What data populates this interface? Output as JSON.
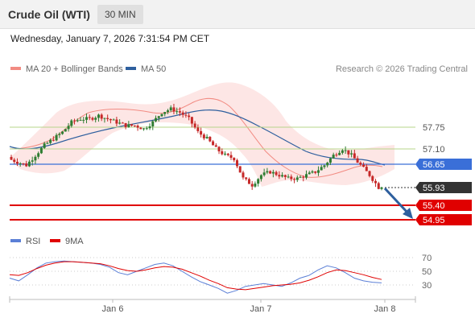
{
  "header": {
    "instrument": "Crude Oil (WTI)",
    "timeframe": "30 MIN",
    "datetime": "Wednesday, January 7, 2026 7:31:54 PM CET"
  },
  "legend": {
    "ma20": {
      "label": "MA 20 + Bollinger Bands",
      "color": "#f28b82"
    },
    "ma50": {
      "label": "MA 50",
      "color": "#2e5f9e"
    },
    "credit": "Research © 2026 Trading Central"
  },
  "levels": {
    "resistance_2": {
      "value": "57.75",
      "color": "#b7d48a"
    },
    "resistance_1": {
      "value": "57.10",
      "color": "#b7d48a"
    },
    "pivot": {
      "value": "56.65",
      "color": "#3a6fd8"
    },
    "last_price": {
      "value": "55.93",
      "color": "#333333"
    },
    "support_1": {
      "value": "55.40",
      "color": "#e00000"
    },
    "support_2": {
      "value": "54.95",
      "color": "#e00000"
    }
  },
  "rsi_legend": {
    "rsi": {
      "label": "RSI",
      "color": "#5b7fd6"
    },
    "ma9": {
      "label": "9MA",
      "color": "#e00000"
    }
  },
  "rsi_ticks": [
    "70",
    "50",
    "30"
  ],
  "x_axis": {
    "labels": [
      "Jan 6",
      "Jan 7",
      "Jan 8"
    ]
  },
  "chart_data": {
    "type": "candlestick",
    "y_price_levels": [
      57.75,
      57.1,
      56.65,
      55.93,
      55.4,
      54.95
    ],
    "close_path": [
      56.8,
      56.7,
      56.6,
      56.9,
      57.2,
      57.4,
      57.6,
      57.9,
      58.0,
      58.0,
      58.1,
      58.0,
      57.9,
      57.8,
      57.8,
      57.7,
      57.9,
      58.2,
      58.3,
      58.2,
      58.0,
      57.6,
      57.4,
      57.1,
      56.9,
      56.8,
      56.2,
      56.0,
      56.3,
      56.4,
      56.3,
      56.2,
      56.2,
      56.3,
      56.4,
      56.6,
      56.9,
      57.1,
      56.9,
      56.6,
      56.3,
      55.93
    ],
    "rsi_series": [
      40,
      36,
      45,
      55,
      62,
      64,
      65,
      64,
      63,
      62,
      60,
      56,
      48,
      45,
      50,
      55,
      60,
      62,
      58,
      50,
      42,
      35,
      30,
      25,
      18,
      22,
      28,
      30,
      32,
      30,
      28,
      33,
      40,
      44,
      52,
      58,
      55,
      48,
      40,
      36,
      34,
      33
    ],
    "rsi_ma9": [
      45,
      44,
      48,
      54,
      59,
      62,
      64,
      64,
      63,
      62,
      61,
      58,
      54,
      51,
      50,
      52,
      55,
      57,
      56,
      53,
      48,
      43,
      37,
      32,
      26,
      24,
      23,
      25,
      27,
      29,
      30,
      31,
      33,
      37,
      42,
      48,
      52,
      51,
      48,
      45,
      41,
      38
    ]
  }
}
